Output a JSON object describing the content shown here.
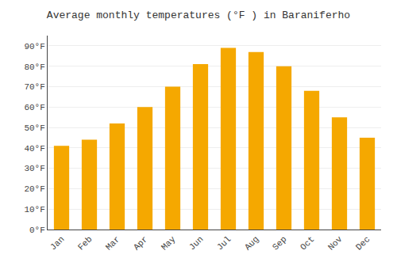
{
  "chart_data": {
    "type": "bar",
    "title": "Average monthly temperatures (°F ) in Baraniferho",
    "categories": [
      "Jan",
      "Feb",
      "Mar",
      "Apr",
      "May",
      "Jun",
      "Jul",
      "Aug",
      "Sep",
      "Oct",
      "Nov",
      "Dec"
    ],
    "values": [
      41,
      44,
      52,
      60,
      70,
      81,
      89,
      87,
      80,
      68,
      55,
      45
    ],
    "color": "#F5A800",
    "ylim": [
      0,
      95
    ],
    "yticks": [
      {
        "value": 0,
        "label": "0°F"
      },
      {
        "value": 10,
        "label": "10°F"
      },
      {
        "value": 20,
        "label": "20°F"
      },
      {
        "value": 30,
        "label": "30°F"
      },
      {
        "value": 40,
        "label": "40°F"
      },
      {
        "value": 50,
        "label": "50°F"
      },
      {
        "value": 60,
        "label": "60°F"
      },
      {
        "value": 70,
        "label": "70°F"
      },
      {
        "value": 80,
        "label": "80°F"
      },
      {
        "value": 90,
        "label": "90°F"
      }
    ],
    "grid": true
  }
}
